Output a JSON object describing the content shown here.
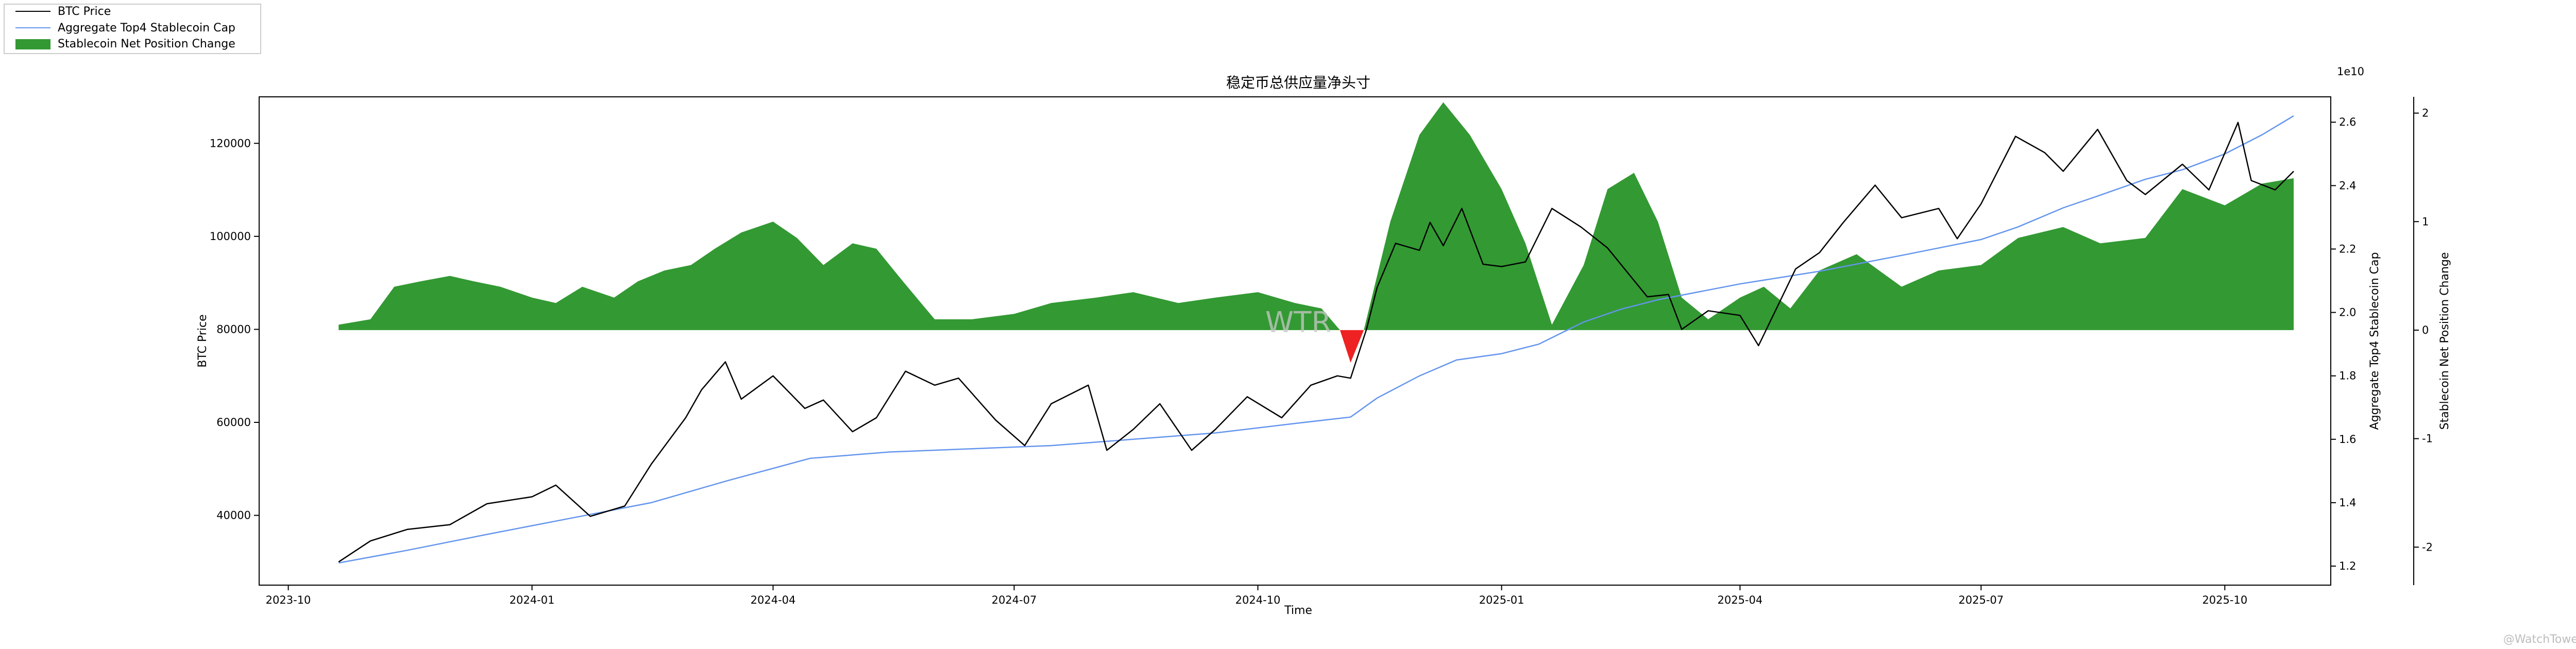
{
  "chart_data": {
    "type": "line",
    "title": "稳定币总供应量净头寸",
    "xlabel": "Time",
    "ylabel": "BTC Price",
    "y2label": "Aggregate Top4 Stablecoin Cap",
    "y3label": "Stablecoin Net Position Change",
    "y2_scale_label": "1e10",
    "x_ticks": [
      "2023-10",
      "2024-01",
      "2024-04",
      "2024-07",
      "2024-10",
      "2025-01",
      "2025-04",
      "2025-07",
      "2025-10"
    ],
    "y_ticks": [
      "40000",
      "60000",
      "80000",
      "100000",
      "120000"
    ],
    "y2_ticks": [
      "1.2",
      "1.4",
      "1.6",
      "1.8",
      "2.0",
      "2.2",
      "2.4",
      "2.6"
    ],
    "y3_ticks": [
      "-2",
      "-1",
      "0",
      "1",
      "2"
    ],
    "xlim": [
      "2023-09-20",
      "2025-11-10"
    ],
    "ylim": [
      25000,
      130000
    ],
    "y2lim": [
      1.14,
      2.68
    ],
    "y3lim": [
      -2.35,
      2.15
    ],
    "legend": {
      "position": "top-left",
      "entries": [
        "BTC Price",
        "Aggregate Top4 Stablecoin Cap",
        "Stablecoin Net Position Change"
      ]
    },
    "colors": {
      "btc": "#000000",
      "cap": "#6495ED",
      "positive": "#339933",
      "negative": "#ee2222"
    },
    "watermark": "WTR",
    "credit": "@WatchTowerX",
    "series": [
      {
        "name": "BTC Price",
        "axis": "left",
        "x": [
          "2023-10-20",
          "2023-11-01",
          "2023-11-15",
          "2023-12-01",
          "2023-12-15",
          "2024-01-01",
          "2024-01-10",
          "2024-01-23",
          "2024-02-05",
          "2024-02-15",
          "2024-02-28",
          "2024-03-05",
          "2024-03-14",
          "2024-03-20",
          "2024-04-01",
          "2024-04-13",
          "2024-04-20",
          "2024-05-01",
          "2024-05-10",
          "2024-05-21",
          "2024-06-01",
          "2024-06-10",
          "2024-06-24",
          "2024-07-05",
          "2024-07-15",
          "2024-07-29",
          "2024-08-05",
          "2024-08-15",
          "2024-08-25",
          "2024-09-06",
          "2024-09-15",
          "2024-09-27",
          "2024-10-10",
          "2024-10-21",
          "2024-10-31",
          "2024-11-05",
          "2024-11-11",
          "2024-11-15",
          "2024-11-22",
          "2024-12-01",
          "2024-12-05",
          "2024-12-10",
          "2024-12-17",
          "2024-12-25",
          "2025-01-01",
          "2025-01-10",
          "2025-01-20",
          "2025-01-31",
          "2025-02-10",
          "2025-02-25",
          "2025-03-05",
          "2025-03-10",
          "2025-03-20",
          "2025-04-01",
          "2025-04-08",
          "2025-04-22",
          "2025-05-01",
          "2025-05-10",
          "2025-05-22",
          "2025-06-01",
          "2025-06-15",
          "2025-06-22",
          "2025-07-01",
          "2025-07-14",
          "2025-07-25",
          "2025-08-01",
          "2025-08-14",
          "2025-08-25",
          "2025-09-01",
          "2025-09-15",
          "2025-09-25",
          "2025-10-06",
          "2025-10-11",
          "2025-10-20",
          "2025-10-27"
        ],
        "values": [
          30000,
          34500,
          37000,
          38000,
          42500,
          44000,
          46500,
          39800,
          42000,
          51000,
          61000,
          67000,
          73000,
          65000,
          70000,
          63000,
          64800,
          58000,
          61000,
          71000,
          68000,
          69500,
          60500,
          55000,
          64000,
          68000,
          54000,
          58500,
          64000,
          54000,
          58500,
          65500,
          61000,
          68000,
          70000,
          69500,
          80000,
          89000,
          98500,
          97000,
          103000,
          98000,
          106000,
          94000,
          93500,
          94500,
          106000,
          102000,
          97500,
          87000,
          87500,
          80000,
          84000,
          83000,
          76500,
          93000,
          96500,
          103000,
          111000,
          104000,
          106000,
          99500,
          107000,
          121500,
          118000,
          114000,
          123000,
          112000,
          109000,
          115500,
          110000,
          124500,
          112000,
          110000,
          114000
        ]
      },
      {
        "name": "Aggregate Top4 Stablecoin Cap",
        "axis": "right",
        "scale": "1e10",
        "x": [
          "2023-10-20",
          "2023-11-15",
          "2023-12-15",
          "2024-01-15",
          "2024-02-15",
          "2024-03-15",
          "2024-04-15",
          "2024-05-15",
          "2024-06-15",
          "2024-07-15",
          "2024-08-15",
          "2024-09-15",
          "2024-10-15",
          "2024-11-05",
          "2024-11-15",
          "2024-12-01",
          "2024-12-15",
          "2025-01-01",
          "2025-01-15",
          "2025-02-01",
          "2025-02-15",
          "2025-03-01",
          "2025-04-01",
          "2025-05-01",
          "2025-06-01",
          "2025-07-01",
          "2025-07-15",
          "2025-08-01",
          "2025-08-15",
          "2025-09-01",
          "2025-09-15",
          "2025-10-01",
          "2025-10-15",
          "2025-10-27"
        ],
        "values": [
          1.21,
          1.25,
          1.3,
          1.35,
          1.4,
          1.47,
          1.54,
          1.56,
          1.57,
          1.58,
          1.6,
          1.62,
          1.65,
          1.67,
          1.73,
          1.8,
          1.85,
          1.87,
          1.9,
          1.97,
          2.01,
          2.04,
          2.09,
          2.13,
          2.18,
          2.23,
          2.27,
          2.33,
          2.37,
          2.42,
          2.45,
          2.5,
          2.56,
          2.62
        ]
      },
      {
        "name": "Stablecoin Net Position Change",
        "type": "area",
        "axis": "right-outer",
        "x": [
          "2023-10-20",
          "2023-11-01",
          "2023-11-10",
          "2023-11-20",
          "2023-12-01",
          "2023-12-10",
          "2023-12-20",
          "2024-01-01",
          "2024-01-10",
          "2024-01-20",
          "2024-02-01",
          "2024-02-10",
          "2024-02-20",
          "2024-03-01",
          "2024-03-10",
          "2024-03-20",
          "2024-04-01",
          "2024-04-10",
          "2024-04-20",
          "2024-05-01",
          "2024-05-10",
          "2024-05-20",
          "2024-06-01",
          "2024-06-15",
          "2024-07-01",
          "2024-07-15",
          "2024-08-01",
          "2024-08-15",
          "2024-09-01",
          "2024-09-15",
          "2024-10-01",
          "2024-10-15",
          "2024-10-25",
          "2024-11-01",
          "2024-11-05",
          "2024-11-10",
          "2024-11-20",
          "2024-12-01",
          "2024-12-10",
          "2024-12-20",
          "2025-01-01",
          "2025-01-10",
          "2025-01-20",
          "2025-02-01",
          "2025-02-10",
          "2025-02-20",
          "2025-03-01",
          "2025-03-10",
          "2025-03-20",
          "2025-04-01",
          "2025-04-10",
          "2025-04-20",
          "2025-05-01",
          "2025-05-15",
          "2025-06-01",
          "2025-06-15",
          "2025-07-01",
          "2025-07-15",
          "2025-08-01",
          "2025-08-15",
          "2025-09-01",
          "2025-09-15",
          "2025-10-01",
          "2025-10-15",
          "2025-10-27"
        ],
        "values": [
          0.05,
          0.1,
          0.4,
          0.45,
          0.5,
          0.45,
          0.4,
          0.3,
          0.25,
          0.4,
          0.3,
          0.45,
          0.55,
          0.6,
          0.75,
          0.9,
          1.0,
          0.85,
          0.6,
          0.8,
          0.75,
          0.45,
          0.1,
          0.1,
          0.15,
          0.25,
          0.3,
          0.35,
          0.25,
          0.3,
          0.35,
          0.25,
          0.2,
          0.0,
          -0.3,
          0.0,
          1.0,
          1.8,
          2.1,
          1.8,
          1.3,
          0.8,
          0.05,
          0.6,
          1.3,
          1.45,
          1.0,
          0.3,
          0.1,
          0.3,
          0.4,
          0.2,
          0.55,
          0.7,
          0.4,
          0.55,
          0.6,
          0.85,
          0.95,
          0.8,
          0.85,
          1.3,
          1.15,
          1.35,
          1.4
        ]
      }
    ]
  }
}
